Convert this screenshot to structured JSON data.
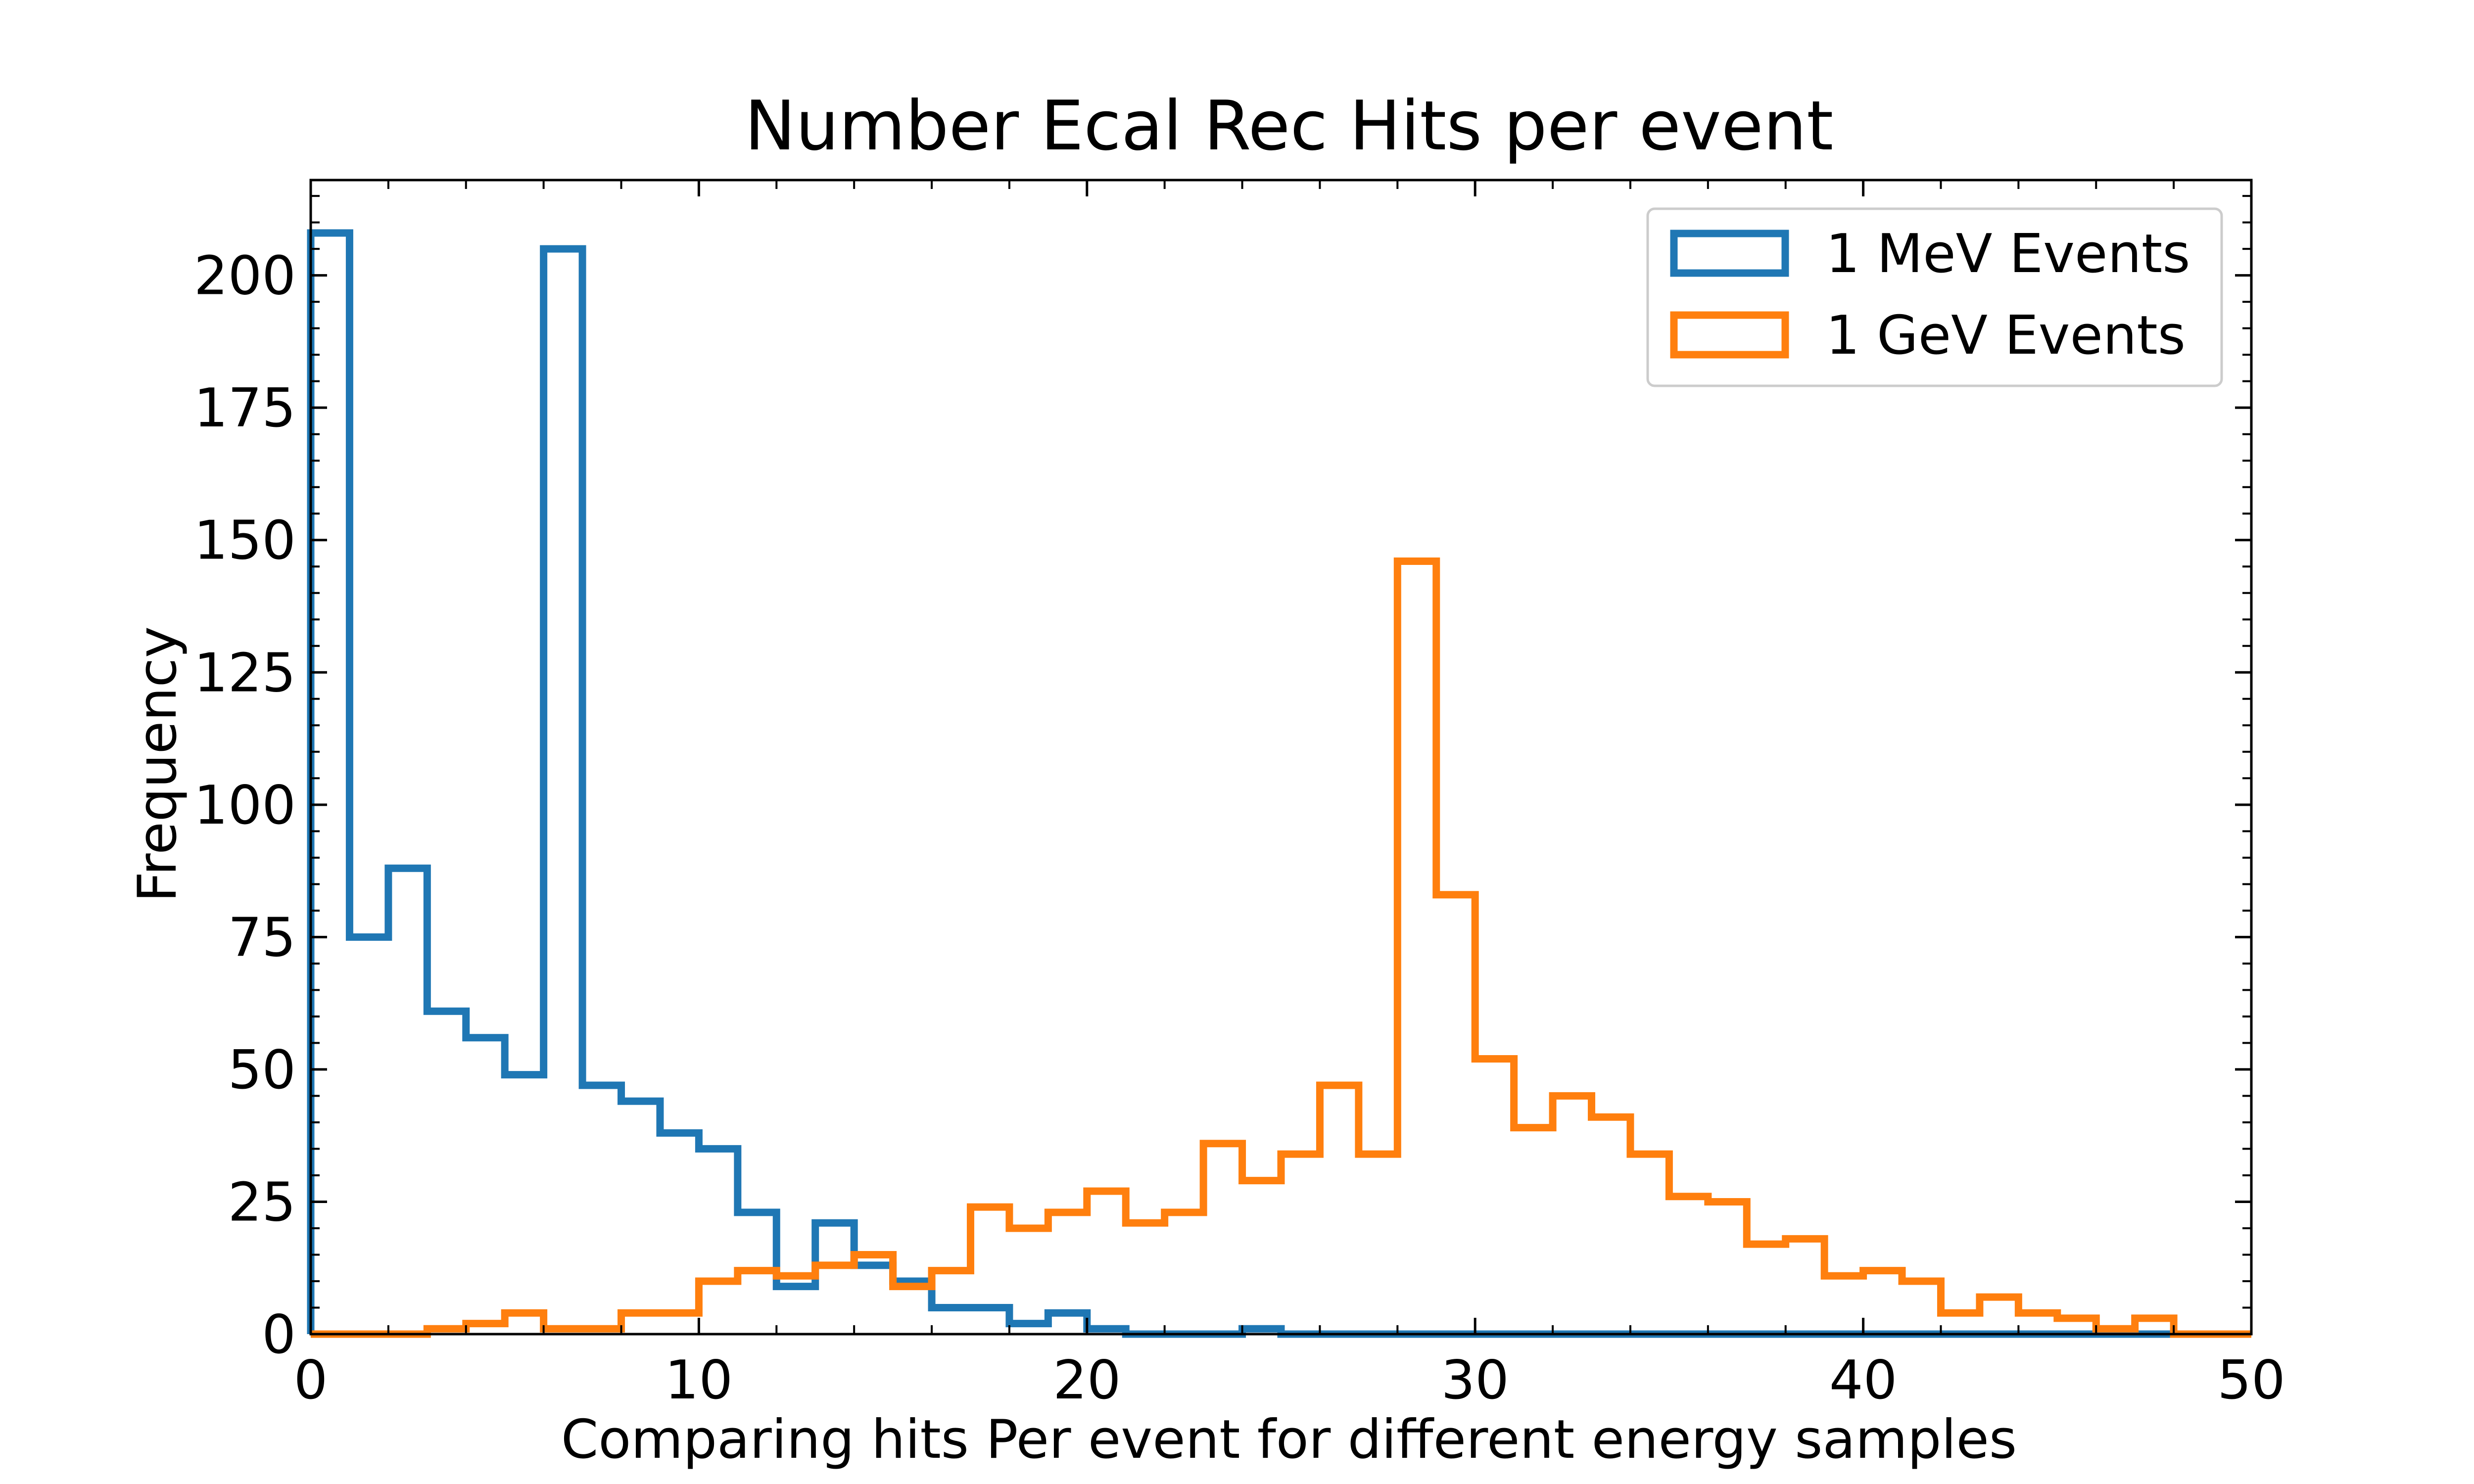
{
  "chart_data": {
    "type": "histogram",
    "title": "Number Ecal Rec Hits per event",
    "xlabel": "Comparing hits Per event for different energy samples",
    "ylabel": "Frequency",
    "xlim": [
      0,
      50
    ],
    "ylim": [
      0,
      218
    ],
    "xticks": [
      0,
      10,
      20,
      30,
      40,
      50
    ],
    "yticks": [
      0,
      25,
      50,
      75,
      100,
      125,
      150,
      175,
      200
    ],
    "bin_edges": [
      0,
      1,
      2,
      3,
      4,
      5,
      6,
      7,
      8,
      9,
      10,
      11,
      12,
      13,
      14,
      15,
      16,
      17,
      18,
      19,
      20,
      21,
      22,
      23,
      24,
      25,
      26,
      27,
      28,
      29,
      30,
      31,
      32,
      33,
      34,
      35,
      36,
      37,
      38,
      39,
      40,
      41,
      42,
      43,
      44,
      45,
      46,
      47,
      48,
      49,
      50
    ],
    "legend_position": "top-right",
    "series": [
      {
        "name": "1 MeV Events",
        "color": "#1f77b4",
        "values": [
          208,
          75,
          88,
          61,
          56,
          49,
          205,
          47,
          44,
          38,
          35,
          23,
          9,
          21,
          13,
          10,
          5,
          5,
          2,
          4,
          1,
          0,
          0,
          0,
          1,
          0,
          0,
          0,
          0,
          0,
          0,
          0,
          0,
          0,
          0,
          0,
          0,
          0,
          0,
          0,
          0,
          0,
          0,
          0,
          0,
          0,
          0,
          0,
          0,
          0
        ]
      },
      {
        "name": "1 GeV Events",
        "color": "#ff7f0e",
        "values": [
          0,
          0,
          0,
          1,
          2,
          4,
          1,
          1,
          4,
          4,
          10,
          12,
          11,
          13,
          15,
          9,
          12,
          24,
          20,
          23,
          27,
          21,
          23,
          36,
          29,
          34,
          47,
          34,
          146,
          83,
          52,
          39,
          45,
          41,
          34,
          26,
          25,
          17,
          18,
          11,
          12,
          10,
          4,
          7,
          4,
          3,
          1,
          3,
          0,
          0
        ]
      }
    ]
  }
}
